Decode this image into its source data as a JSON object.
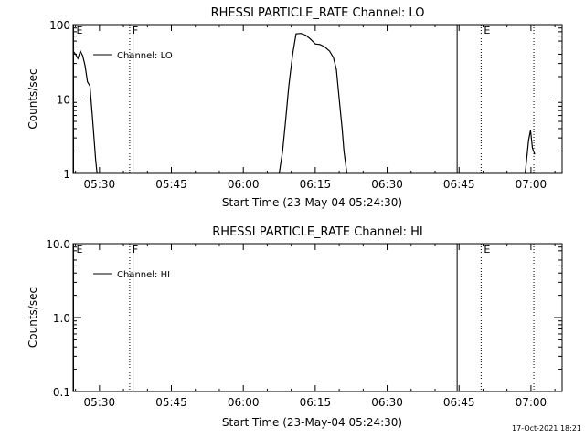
{
  "chart_data": [
    {
      "type": "line",
      "title": "RHESSI PARTICLE_RATE Channel: LO",
      "xlabel": "Start Time (23-May-04 05:24:30)",
      "ylabel": "Counts/sec",
      "x_tick_labels": [
        "05:30",
        "05:45",
        "06:00",
        "06:15",
        "06:30",
        "06:45",
        "07:00"
      ],
      "x_tick_minutes": [
        330,
        345,
        360,
        375,
        390,
        405,
        420
      ],
      "xlim_minutes": [
        324.5,
        426.5
      ],
      "y_scale": "log",
      "ylim": [
        1,
        100
      ],
      "y_tick_labels": [
        "1",
        "10",
        "100"
      ],
      "y_tick_values": [
        1,
        10,
        100
      ],
      "legend": {
        "label": "Channel: LO",
        "placement": "top-left"
      },
      "markers": [
        {
          "label": "E",
          "minute": 324.6,
          "style": "solid"
        },
        {
          "label": "F",
          "minute": 336.3,
          "style": "dotted"
        },
        {
          "label": "",
          "minute": 337.0,
          "style": "solid"
        },
        {
          "label": "",
          "minute": 404.6,
          "style": "solid"
        },
        {
          "label": "E",
          "minute": 409.6,
          "style": "dotted"
        },
        {
          "label": "",
          "minute": 420.6,
          "style": "dotted"
        }
      ],
      "series": [
        {
          "name": "Channel: LO",
          "segments": [
            [
              [
                324.5,
                44
              ],
              [
                325.0,
                40
              ],
              [
                325.5,
                35
              ],
              [
                326.0,
                44
              ],
              [
                326.5,
                38
              ],
              [
                327.0,
                28
              ],
              [
                327.5,
                17
              ],
              [
                328.0,
                15
              ],
              [
                328.6,
                5
              ],
              [
                329.2,
                1.5
              ],
              [
                329.5,
                1
              ]
            ],
            [
              [
                367.5,
                1
              ],
              [
                368.2,
                2
              ],
              [
                368.8,
                5
              ],
              [
                369.5,
                15
              ],
              [
                370.3,
                40
              ],
              [
                371.0,
                75
              ],
              [
                372.0,
                76
              ],
              [
                373.0,
                72
              ],
              [
                374.0,
                64
              ],
              [
                375.0,
                55
              ],
              [
                376.0,
                54
              ],
              [
                377.0,
                50
              ],
              [
                378.0,
                44
              ],
              [
                378.8,
                36
              ],
              [
                379.4,
                25
              ],
              [
                380.0,
                10
              ],
              [
                380.6,
                4
              ],
              [
                381.0,
                2
              ],
              [
                381.6,
                1
              ]
            ],
            [
              [
                418.8,
                1
              ],
              [
                419.5,
                2.8
              ],
              [
                419.9,
                3.8
              ],
              [
                420.3,
                2.2
              ],
              [
                420.8,
                1.8
              ]
            ]
          ]
        }
      ]
    },
    {
      "type": "line",
      "title": "RHESSI PARTICLE_RATE Channel: HI",
      "xlabel": "Start Time (23-May-04 05:24:30)",
      "ylabel": "Counts/sec",
      "x_tick_labels": [
        "05:30",
        "05:45",
        "06:00",
        "06:15",
        "06:30",
        "06:45",
        "07:00"
      ],
      "x_tick_minutes": [
        330,
        345,
        360,
        375,
        390,
        405,
        420
      ],
      "xlim_minutes": [
        324.5,
        426.5
      ],
      "y_scale": "log",
      "ylim": [
        0.1,
        10
      ],
      "y_tick_labels": [
        "0.1",
        "1.0",
        "10.0"
      ],
      "y_tick_values": [
        0.1,
        1,
        10
      ],
      "legend": {
        "label": "Channel: HI",
        "placement": "top-left"
      },
      "markers": [
        {
          "label": "E",
          "minute": 324.6,
          "style": "solid"
        },
        {
          "label": "F",
          "minute": 336.3,
          "style": "dotted"
        },
        {
          "label": "",
          "minute": 337.0,
          "style": "solid"
        },
        {
          "label": "",
          "minute": 404.6,
          "style": "solid"
        },
        {
          "label": "E",
          "minute": 409.6,
          "style": "dotted"
        },
        {
          "label": "",
          "minute": 420.6,
          "style": "dotted"
        }
      ],
      "series": [
        {
          "name": "Channel: HI",
          "segments": []
        }
      ]
    }
  ],
  "footer": {
    "timestamp": "17-Oct-2021 18:21"
  }
}
